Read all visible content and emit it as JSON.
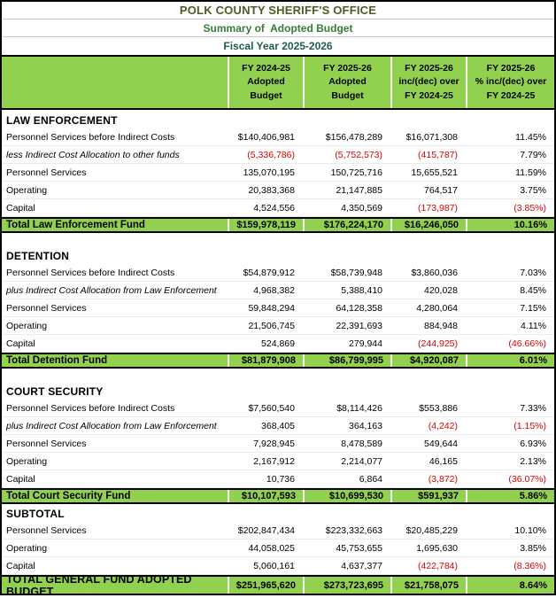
{
  "colors": {
    "band_green": "#92D050",
    "negative_red": "#DD0000",
    "title_olive": "#4A5D23",
    "subtitle_green": "#357C38",
    "fiscal_teal": "#1F5C50"
  },
  "titles": {
    "agency": "POLK COUNTY SHERIFF'S OFFICE",
    "summary": "Summary of  Adopted Budget",
    "fiscal_year": "Fiscal Year 2025-2026"
  },
  "column_headers": [
    {
      "line1": "FY 2024-25",
      "line2": "Adopted",
      "line3": "Budget"
    },
    {
      "line1": "FY 2025-26",
      "line2": "Adopted",
      "line3": "Budget"
    },
    {
      "line1": "FY 2025-26",
      "line2": "inc/(dec) over",
      "line3": "FY 2024-25"
    },
    {
      "line1": "FY 2025-26",
      "line2": "% inc/(dec) over",
      "line3": "FY 2024-25"
    }
  ],
  "sections": [
    {
      "name": "LAW ENFORCEMENT",
      "rows": [
        {
          "label": "Personnel Services before Indirect Costs",
          "values": [
            "$140,406,981",
            "$156,478,289",
            "$16,071,308",
            "11.45%"
          ]
        },
        {
          "label": "less Indirect Cost Allocation to other funds",
          "values": [
            "(5,336,786)",
            "(5,752,573)",
            "(415,787)",
            "7.79%"
          ]
        },
        {
          "label": "Personnel Services",
          "values": [
            "135,070,195",
            "150,725,716",
            "15,655,521",
            "11.59%"
          ]
        },
        {
          "label": "Operating",
          "values": [
            "20,383,368",
            "21,147,885",
            "764,517",
            "3.75%"
          ]
        },
        {
          "label": "Capital",
          "values": [
            "4,524,556",
            "4,350,569",
            "(173,987)",
            "(3.85%)"
          ]
        }
      ],
      "total": {
        "label": "Total Law Enforcement Fund",
        "values": [
          "$159,978,119",
          "$176,224,170",
          "$16,246,050",
          "10.16%"
        ]
      }
    },
    {
      "name": "DETENTION",
      "rows": [
        {
          "label": "Personnel Services before Indirect Costs",
          "values": [
            "$54,879,912",
            "$58,739,948",
            "$3,860,036",
            "7.03%"
          ]
        },
        {
          "label": "plus Indirect Cost Allocation from Law Enforcement",
          "values": [
            "4,968,382",
            "5,388,410",
            "420,028",
            "8.45%"
          ]
        },
        {
          "label": "Personnel Services",
          "values": [
            "59,848,294",
            "64,128,358",
            "4,280,064",
            "7.15%"
          ]
        },
        {
          "label": "Operating",
          "values": [
            "21,506,745",
            "22,391,693",
            "884,948",
            "4.11%"
          ]
        },
        {
          "label": "Capital",
          "values": [
            "524,869",
            "279,944",
            "(244,925)",
            "(46.66%)"
          ]
        }
      ],
      "total": {
        "label": "Total Detention Fund",
        "values": [
          "$81,879,908",
          "$86,799,995",
          "$4,920,087",
          "6.01%"
        ]
      }
    },
    {
      "name": "COURT SECURITY",
      "rows": [
        {
          "label": "Personnel Services before Indirect Costs",
          "values": [
            "$7,560,540",
            "$8,114,426",
            "$553,886",
            "7.33%"
          ]
        },
        {
          "label": "plus Indirect Cost Allocation from Law Enforcement",
          "values": [
            "368,405",
            "364,163",
            "(4,242)",
            "(1.15%)"
          ]
        },
        {
          "label": "Personnel Services",
          "values": [
            "7,928,945",
            "8,478,589",
            "549,644",
            "6.93%"
          ]
        },
        {
          "label": "Operating",
          "values": [
            "2,167,912",
            "2,214,077",
            "46,165",
            "2.13%"
          ]
        },
        {
          "label": "Capital",
          "values": [
            "10,736",
            "6,864",
            "(3,872)",
            "(36.07%)"
          ]
        }
      ],
      "total": {
        "label": "Total Court Security Fund",
        "values": [
          "$10,107,593",
          "$10,699,530",
          "$591,937",
          "5.86%"
        ]
      }
    },
    {
      "name": "SUBTOTAL",
      "rows": [
        {
          "label": "Personnel Services",
          "values": [
            "$202,847,434",
            "$223,332,663",
            "$20,485,229",
            "10.10%"
          ]
        },
        {
          "label": "Operating",
          "values": [
            "44,058,025",
            "45,753,655",
            "1,695,630",
            "3.85%"
          ]
        },
        {
          "label": "Capital",
          "values": [
            "5,060,161",
            "4,637,377",
            "(422,784)",
            "(8.36%)"
          ]
        }
      ]
    }
  ],
  "grand_total": {
    "label": "TOTAL GENERAL FUND ADOPTED BUDGET",
    "values": [
      "$251,965,620",
      "$273,723,695",
      "$21,758,075",
      "8.64%"
    ]
  }
}
